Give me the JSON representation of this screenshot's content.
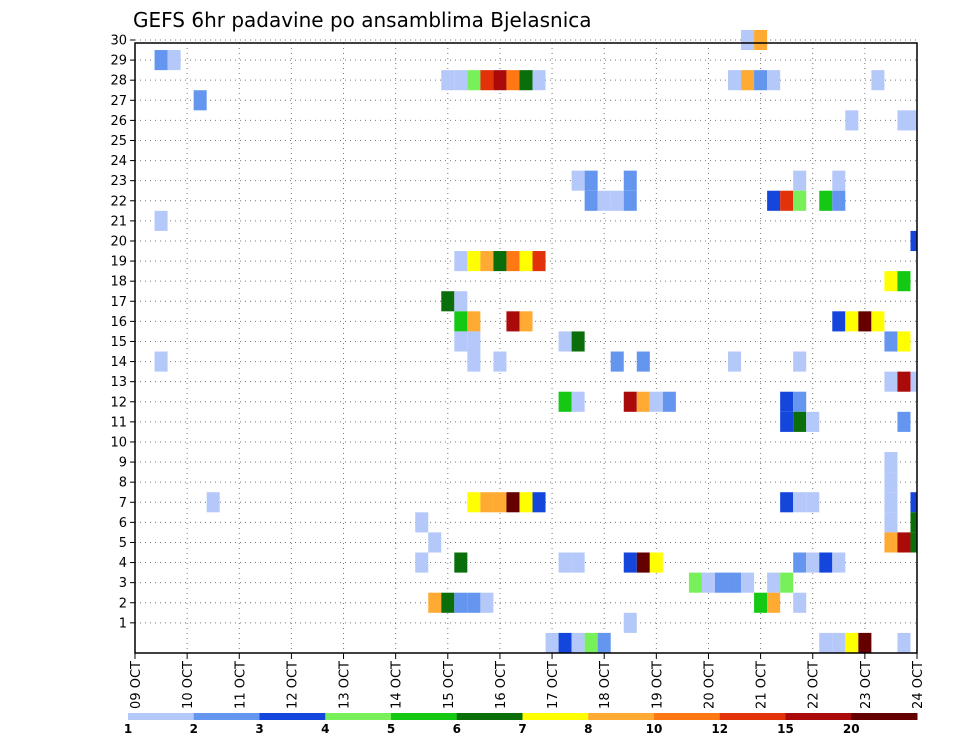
{
  "chart_data": {
    "type": "heatmap",
    "title": "GEFS 6hr padavine po ansamblima Bjelasnica",
    "xlabel": "",
    "ylabel": "",
    "x_tick_labels": [
      "09 OCT",
      "10 OCT",
      "11 OCT",
      "12 OCT",
      "13 OCT",
      "14 OCT",
      "15 OCT",
      "16 OCT",
      "17 OCT",
      "18 OCT",
      "19 OCT",
      "20 OCT",
      "21 OCT",
      "22 OCT",
      "23 OCT",
      "24 OCT"
    ],
    "y_tick_labels": [
      "1",
      "2",
      "3",
      "4",
      "5",
      "6",
      "7",
      "8",
      "9",
      "10",
      "11",
      "12",
      "13",
      "14",
      "15",
      "16",
      "17",
      "18",
      "19",
      "20",
      "21",
      "22",
      "23",
      "24",
      "25",
      "26",
      "27",
      "28",
      "29",
      "30"
    ],
    "x_range_steps": [
      0,
      60
    ],
    "steps_per_day": 4,
    "y_range_members": [
      0,
      30
    ],
    "legend": {
      "position": "bottom",
      "labels": [
        "1",
        "2",
        "3",
        "4",
        "5",
        "6",
        "7",
        "8",
        "10",
        "12",
        "15",
        "20"
      ],
      "colors": [
        "#b4c8fa",
        "#6496f0",
        "#1446dc",
        "#78f05a",
        "#14c814",
        "#0a6e0a",
        "#ffff00",
        "#ffaa32",
        "#ff7814",
        "#e1320a",
        "#aa0a0a",
        "#640000"
      ]
    },
    "cells_desc": "each cell: [forecast step index (6h steps from 09 OCT 00z), ensemble member (0 = control), color class index into legend.colors]",
    "cells": [
      [
        2,
        29,
        1
      ],
      [
        3,
        29,
        0
      ],
      [
        5,
        27,
        1
      ],
      [
        2,
        21,
        0
      ],
      [
        2,
        14,
        0
      ],
      [
        6,
        7,
        0
      ],
      [
        24,
        28,
        0
      ],
      [
        25,
        28,
        0
      ],
      [
        26,
        28,
        3
      ],
      [
        27,
        28,
        9
      ],
      [
        28,
        28,
        10
      ],
      [
        29,
        28,
        8
      ],
      [
        30,
        28,
        5
      ],
      [
        31,
        28,
        0
      ],
      [
        47,
        30,
        0
      ],
      [
        48,
        30,
        7
      ],
      [
        46,
        28,
        0
      ],
      [
        47,
        28,
        7
      ],
      [
        48,
        28,
        1
      ],
      [
        49,
        28,
        0
      ],
      [
        57,
        28,
        0
      ],
      [
        55,
        26,
        0
      ],
      [
        59,
        26,
        0
      ],
      [
        60,
        26,
        0
      ],
      [
        34,
        23,
        0
      ],
      [
        35,
        23,
        1
      ],
      [
        38,
        23,
        1
      ],
      [
        51,
        23,
        0
      ],
      [
        54,
        23,
        0
      ],
      [
        35,
        22,
        1
      ],
      [
        36,
        22,
        0
      ],
      [
        37,
        22,
        0
      ],
      [
        38,
        22,
        1
      ],
      [
        49,
        22,
        2
      ],
      [
        50,
        22,
        9
      ],
      [
        51,
        22,
        3
      ],
      [
        53,
        22,
        4
      ],
      [
        54,
        22,
        1
      ],
      [
        60,
        20,
        2
      ],
      [
        25,
        19,
        0
      ],
      [
        26,
        19,
        6
      ],
      [
        27,
        19,
        7
      ],
      [
        28,
        19,
        5
      ],
      [
        29,
        19,
        8
      ],
      [
        30,
        19,
        6
      ],
      [
        31,
        19,
        9
      ],
      [
        58,
        18,
        6
      ],
      [
        59,
        18,
        4
      ],
      [
        24,
        17,
        5
      ],
      [
        25,
        17,
        0
      ],
      [
        25,
        16,
        4
      ],
      [
        26,
        16,
        7
      ],
      [
        29,
        16,
        10
      ],
      [
        30,
        16,
        7
      ],
      [
        54,
        16,
        2
      ],
      [
        55,
        16,
        6
      ],
      [
        56,
        16,
        11
      ],
      [
        57,
        16,
        6
      ],
      [
        25,
        15,
        0
      ],
      [
        26,
        15,
        0
      ],
      [
        33,
        15,
        0
      ],
      [
        34,
        15,
        5
      ],
      [
        58,
        15,
        1
      ],
      [
        59,
        15,
        6
      ],
      [
        26,
        14,
        0
      ],
      [
        28,
        14,
        0
      ],
      [
        37,
        14,
        1
      ],
      [
        39,
        14,
        1
      ],
      [
        46,
        14,
        0
      ],
      [
        51,
        14,
        0
      ],
      [
        58,
        13,
        0
      ],
      [
        59,
        13,
        10
      ],
      [
        60,
        13,
        0
      ],
      [
        33,
        12,
        4
      ],
      [
        34,
        12,
        0
      ],
      [
        38,
        12,
        10
      ],
      [
        39,
        12,
        7
      ],
      [
        40,
        12,
        0
      ],
      [
        41,
        12,
        1
      ],
      [
        50,
        12,
        2
      ],
      [
        51,
        12,
        1
      ],
      [
        50,
        11,
        2
      ],
      [
        51,
        11,
        5
      ],
      [
        52,
        11,
        0
      ],
      [
        59,
        11,
        1
      ],
      [
        58,
        9,
        0
      ],
      [
        58,
        8,
        0
      ],
      [
        26,
        7,
        6
      ],
      [
        27,
        7,
        7
      ],
      [
        28,
        7,
        7
      ],
      [
        29,
        7,
        11
      ],
      [
        30,
        7,
        6
      ],
      [
        31,
        7,
        2
      ],
      [
        50,
        7,
        2
      ],
      [
        51,
        7,
        0
      ],
      [
        52,
        7,
        0
      ],
      [
        60,
        7,
        2
      ],
      [
        58,
        7,
        0
      ],
      [
        22,
        6,
        0
      ],
      [
        58,
        6,
        0
      ],
      [
        60,
        6,
        5
      ],
      [
        23,
        5,
        0
      ],
      [
        58,
        5,
        7
      ],
      [
        59,
        5,
        10
      ],
      [
        60,
        5,
        5
      ],
      [
        22,
        4,
        0
      ],
      [
        25,
        4,
        5
      ],
      [
        33,
        4,
        0
      ],
      [
        34,
        4,
        0
      ],
      [
        38,
        4,
        2
      ],
      [
        39,
        4,
        11
      ],
      [
        40,
        4,
        6
      ],
      [
        51,
        4,
        1
      ],
      [
        52,
        4,
        0
      ],
      [
        53,
        4,
        2
      ],
      [
        54,
        4,
        0
      ],
      [
        43,
        3,
        3
      ],
      [
        44,
        3,
        0
      ],
      [
        45,
        3,
        1
      ],
      [
        46,
        3,
        1
      ],
      [
        47,
        3,
        0
      ],
      [
        49,
        3,
        0
      ],
      [
        50,
        3,
        3
      ],
      [
        23,
        2,
        7
      ],
      [
        24,
        2,
        5
      ],
      [
        25,
        2,
        1
      ],
      [
        26,
        2,
        1
      ],
      [
        27,
        2,
        0
      ],
      [
        48,
        2,
        4
      ],
      [
        49,
        2,
        7
      ],
      [
        51,
        2,
        0
      ],
      [
        38,
        1,
        0
      ],
      [
        32,
        0,
        0
      ],
      [
        33,
        0,
        2
      ],
      [
        34,
        0,
        0
      ],
      [
        35,
        0,
        3
      ],
      [
        36,
        0,
        1
      ],
      [
        53,
        0,
        0
      ],
      [
        54,
        0,
        0
      ],
      [
        55,
        0,
        6
      ],
      [
        56,
        0,
        11
      ],
      [
        59,
        0,
        0
      ]
    ]
  }
}
